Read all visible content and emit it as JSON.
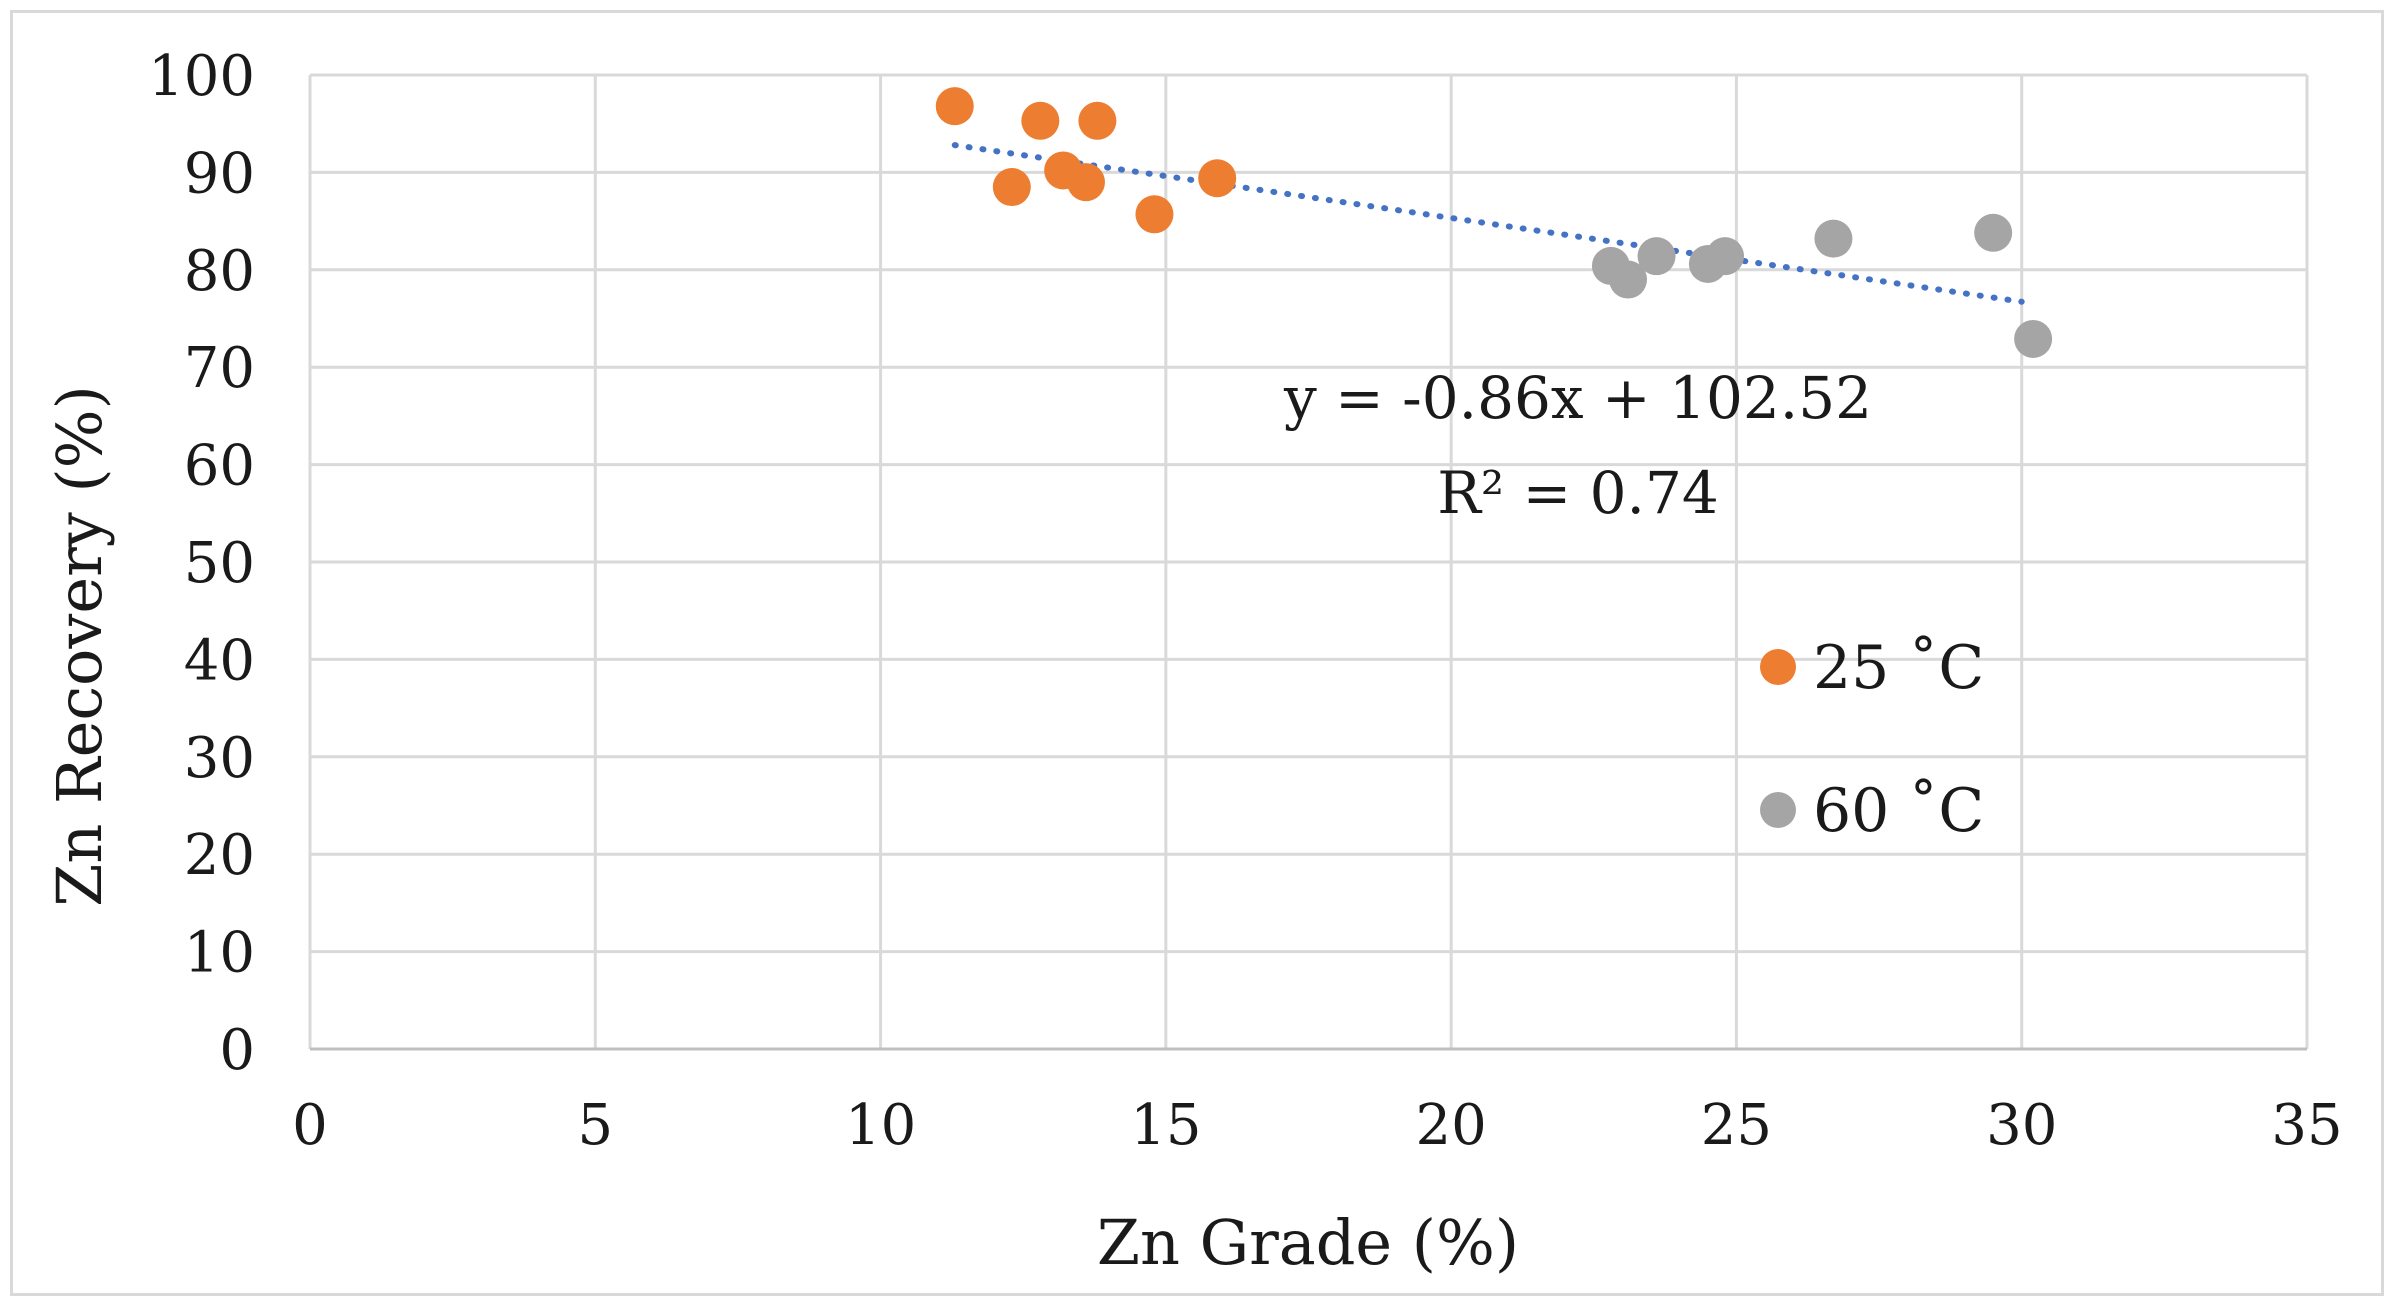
{
  "chart_data": {
    "type": "scatter",
    "title": "",
    "xlabel": "Zn Grade (%)",
    "ylabel": "Zn Recovery  (%)",
    "xlim": [
      0,
      35
    ],
    "ylim": [
      0,
      100
    ],
    "x_ticks": [
      0,
      5,
      10,
      15,
      20,
      25,
      30,
      35
    ],
    "y_ticks": [
      0,
      10,
      20,
      30,
      40,
      50,
      60,
      70,
      80,
      90,
      100
    ],
    "grid": true,
    "legend_position": "right",
    "series": [
      {
        "name": "25 ˚C",
        "color": "#ED7D31",
        "points": [
          [
            11.3,
            96.8
          ],
          [
            12.3,
            88.5
          ],
          [
            12.8,
            95.3
          ],
          [
            13.2,
            90.2
          ],
          [
            13.6,
            89.0
          ],
          [
            13.8,
            95.3
          ],
          [
            14.8,
            85.7
          ],
          [
            15.9,
            89.4
          ]
        ]
      },
      {
        "name": "60 ˚C",
        "color": "#A5A5A5",
        "points": [
          [
            22.8,
            80.4
          ],
          [
            23.1,
            79.0
          ],
          [
            23.6,
            81.4
          ],
          [
            24.5,
            80.6
          ],
          [
            24.8,
            81.4
          ],
          [
            26.7,
            83.2
          ],
          [
            29.5,
            83.8
          ],
          [
            30.2,
            72.9
          ]
        ]
      }
    ],
    "trendline": {
      "type": "linear",
      "color": "#4472C4",
      "style": "dotted",
      "slope": -0.86,
      "intercept": 102.52,
      "x_range": [
        11.3,
        30.0
      ],
      "equation_label": "y = -0.86x + 102.52",
      "r2_label": "R² = 0.74"
    }
  }
}
